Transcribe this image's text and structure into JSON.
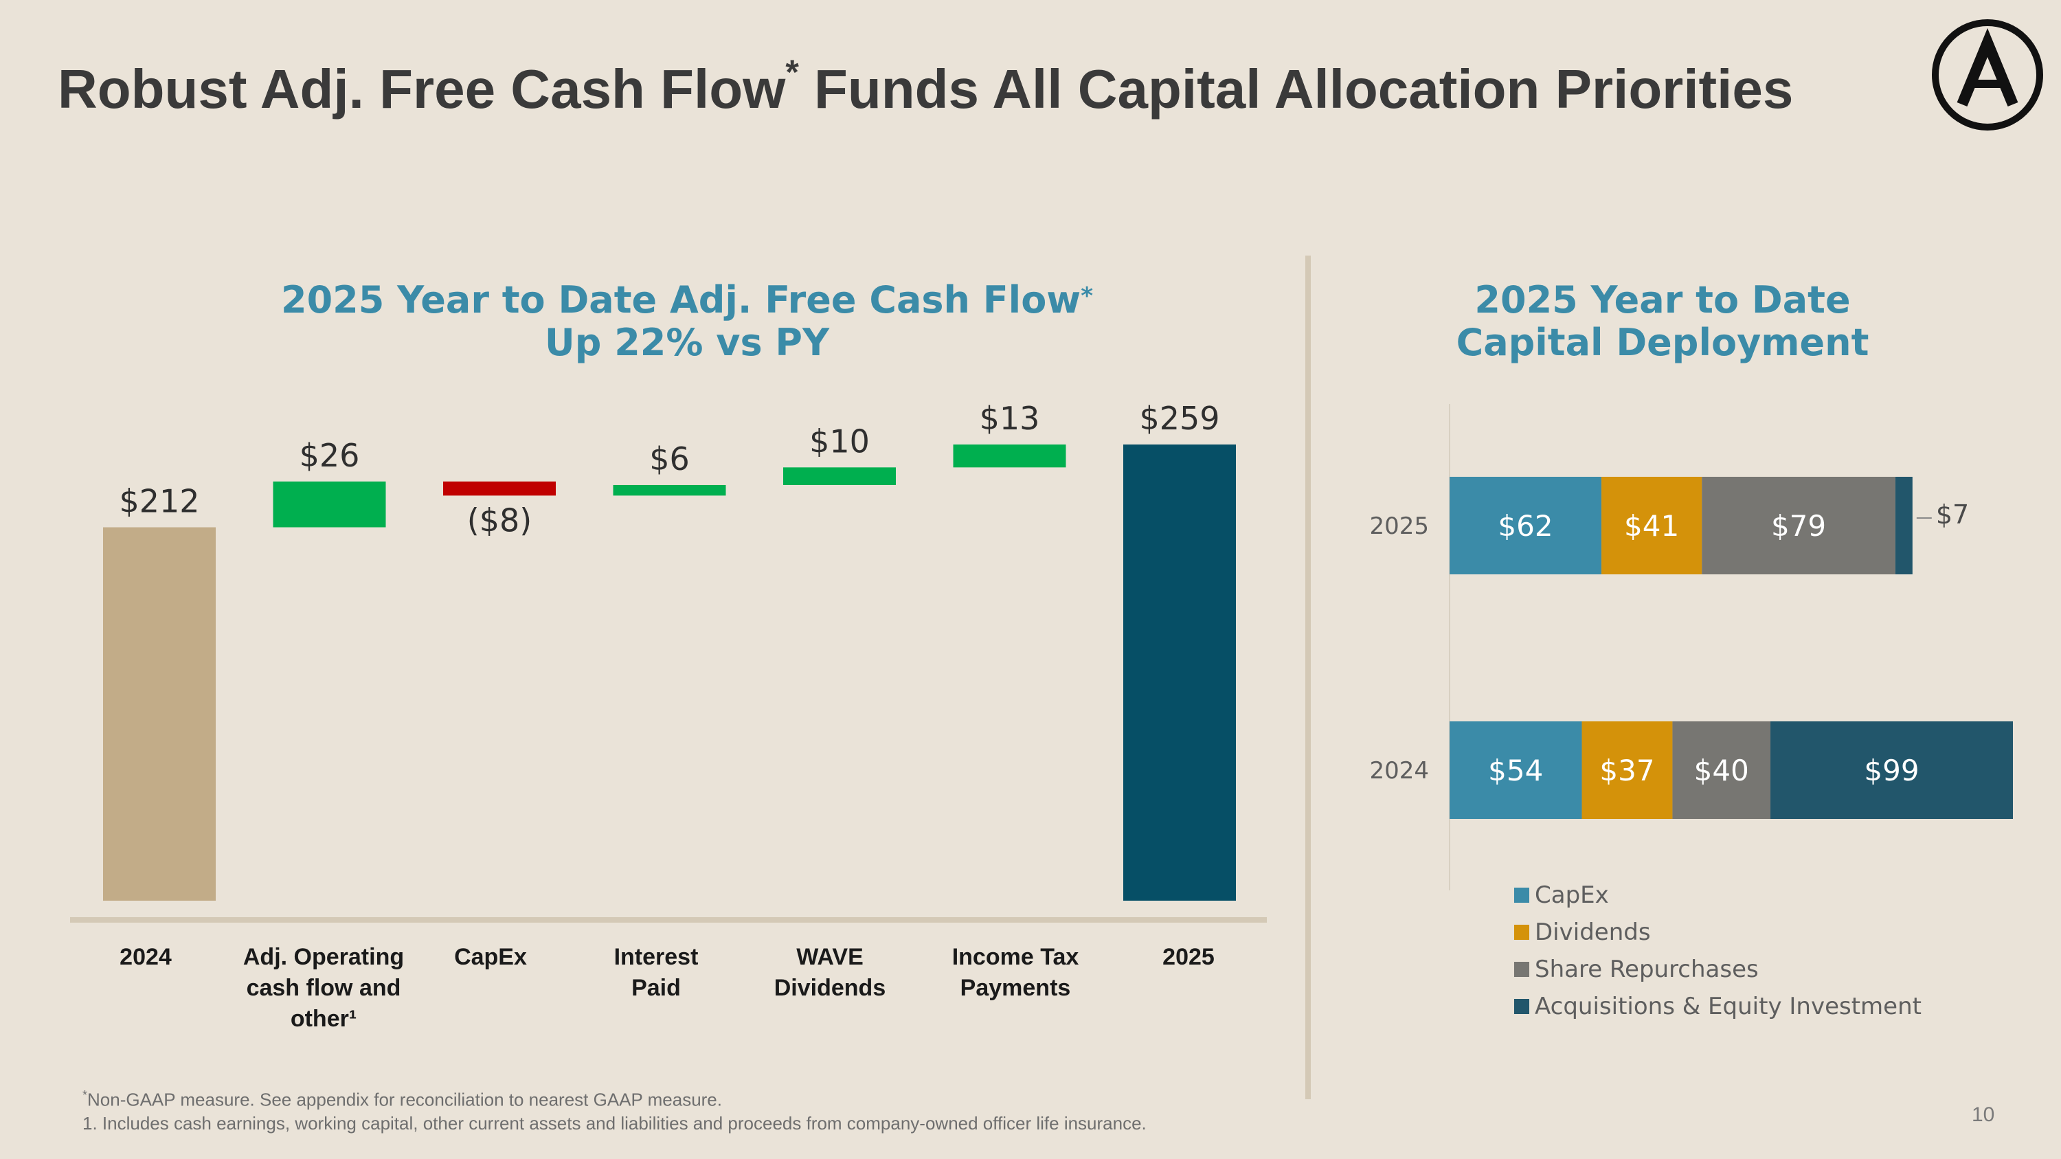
{
  "header": {
    "title_part1": "Robust Adj. Free Cash Flow",
    "title_star": "*",
    "title_part2": " Funds All Capital Allocation Priorities"
  },
  "left_chart": {
    "title_line1": "2025 Year to Date Adj. Free Cash Flow",
    "title_star": "*",
    "title_line2": "Up 22% vs PY"
  },
  "right_chart": {
    "title_line1": "2025 Year to Date",
    "title_line2": "Capital Deployment"
  },
  "legend": [
    {
      "label": "CapEx",
      "color": "#3B8BA8"
    },
    {
      "label": "Dividends",
      "color": "#D4920A"
    },
    {
      "label": "Share Repurchases",
      "color": "#777672"
    },
    {
      "label": "Acquisitions & Equity Investment",
      "color": "#22566B"
    }
  ],
  "footnotes": {
    "star": "*",
    "note1": "Non-GAAP measure. See appendix for reconciliation to nearest GAAP measure.",
    "note2": "1. Includes cash earnings, working capital, other current assets and liabilities and proceeds from company-owned officer life insurance."
  },
  "page_number": "10",
  "chart_data": [
    {
      "type": "bar",
      "subtype": "waterfall",
      "categories": [
        [
          "2024"
        ],
        [
          "Adj. Operating",
          "cash flow and",
          "other¹"
        ],
        [
          "CapEx"
        ],
        [
          "Interest",
          "Paid"
        ],
        [
          "WAVE",
          "Dividends"
        ],
        [
          "Income Tax",
          "Payments"
        ],
        [
          "2025"
        ]
      ],
      "values": [
        212,
        26,
        -8,
        6,
        10,
        13,
        259
      ],
      "kinds": [
        "total",
        "delta",
        "delta",
        "delta",
        "delta",
        "delta",
        "total"
      ],
      "labels": [
        "$212",
        "$26",
        "($8)",
        "$6",
        "$10",
        "$13",
        "$259"
      ],
      "colors": {
        "start_total": "#C2AC88",
        "increase": "#00AF4F",
        "decrease": "#C00000",
        "end_total": "#064F66"
      },
      "ylim": [
        0,
        270
      ]
    },
    {
      "type": "bar",
      "subtype": "stacked-horizontal",
      "categories": [
        "2025",
        "2024"
      ],
      "series": [
        {
          "name": "CapEx",
          "values": [
            62,
            54
          ],
          "labels": [
            "$62",
            "$54"
          ],
          "color": "#3B8BA8"
        },
        {
          "name": "Dividends",
          "values": [
            41,
            37
          ],
          "labels": [
            "$41",
            "$37"
          ],
          "color": "#D4920A"
        },
        {
          "name": "Share Repurchases",
          "values": [
            79,
            40
          ],
          "labels": [
            "$79",
            "$40"
          ],
          "color": "#777672"
        },
        {
          "name": "Acquisitions & Equity Investment",
          "values": [
            7,
            99
          ],
          "labels": [
            "$7",
            "$99"
          ],
          "color": "#22566B"
        }
      ],
      "xlim": [
        0,
        230
      ]
    }
  ]
}
